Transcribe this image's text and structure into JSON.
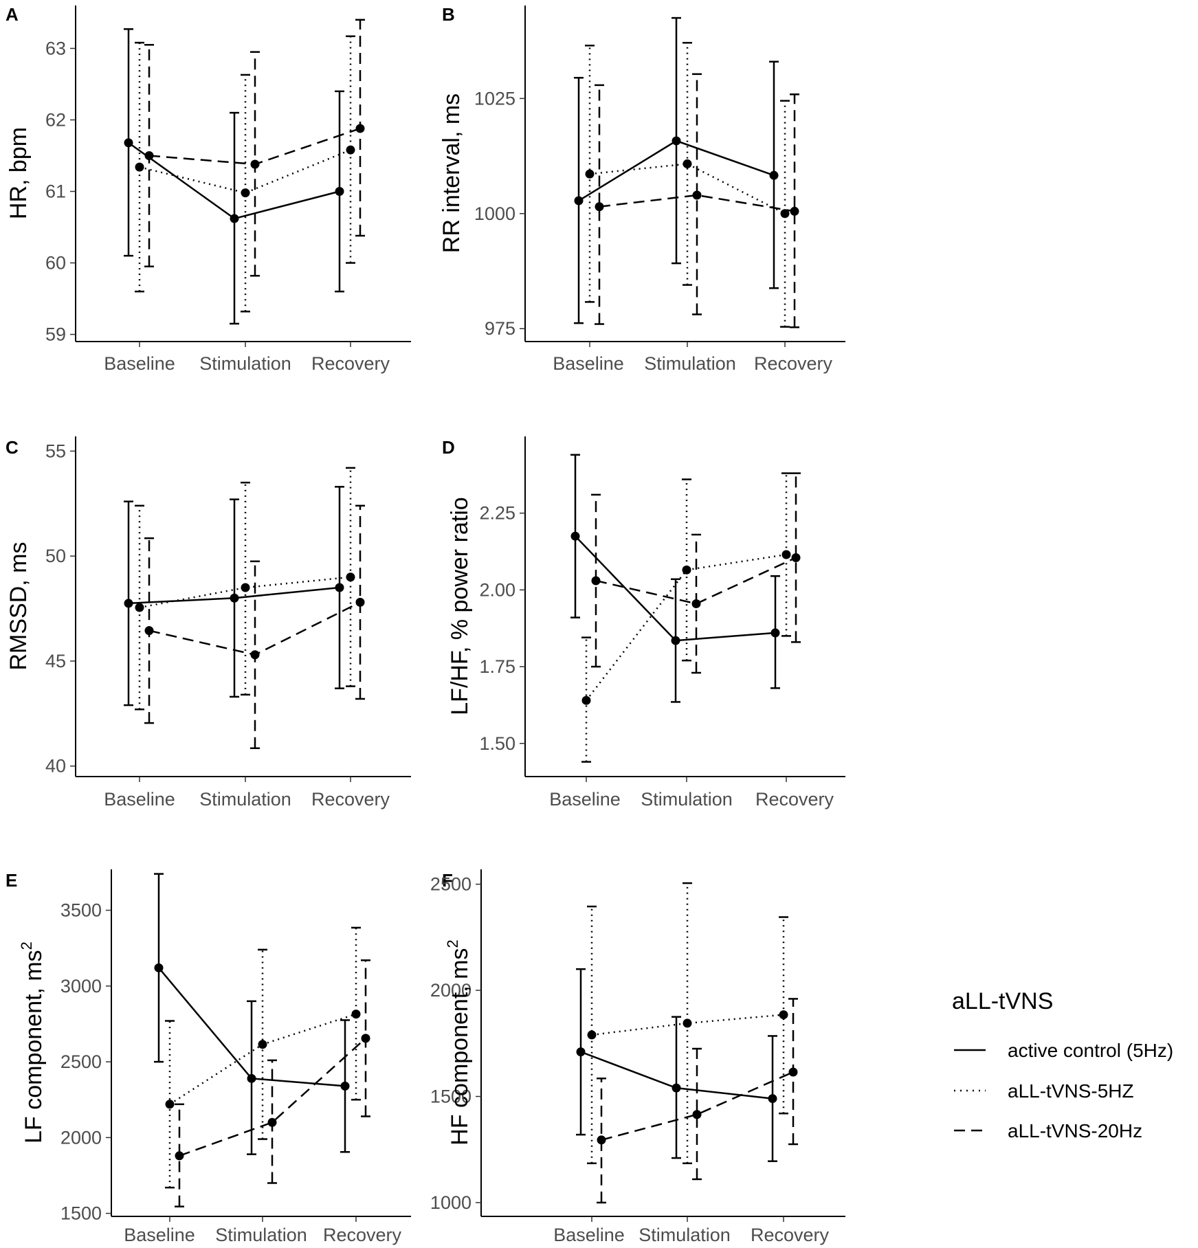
{
  "legend": {
    "title": "aLL-tVNS",
    "entries": [
      {
        "label": "active control (5Hz)",
        "dash": "solid"
      },
      {
        "label": "aLL-tVNS-5HZ",
        "dash": "dotted"
      },
      {
        "label": "aLL-tVNS-20Hz",
        "dash": "dashed"
      }
    ]
  },
  "chart_data": [
    {
      "panel": "A",
      "type": "line",
      "ylabel": "HR, bpm",
      "ylabel_sup": "",
      "categories": [
        "Baseline",
        "Stimulation",
        "Recovery"
      ],
      "ylim": [
        58.9,
        63.6
      ],
      "yticks": [
        59,
        60,
        61,
        62,
        63
      ],
      "ytick_labels": [
        "59",
        "60",
        "61",
        "62",
        "63"
      ],
      "series": [
        {
          "name": "active control (5Hz)",
          "values": [
            61.68,
            60.62,
            61.0
          ],
          "lower": [
            60.1,
            59.15,
            59.6
          ],
          "upper": [
            63.27,
            62.1,
            62.4
          ]
        },
        {
          "name": "aLL-tVNS-5HZ",
          "values": [
            61.34,
            60.98,
            61.58
          ],
          "lower": [
            59.6,
            59.32,
            60.0
          ],
          "upper": [
            63.08,
            62.63,
            63.17
          ]
        },
        {
          "name": "aLL-tVNS-20Hz",
          "values": [
            61.5,
            61.38,
            61.88
          ],
          "lower": [
            59.95,
            59.82,
            60.38
          ],
          "upper": [
            63.05,
            62.95,
            63.4
          ]
        }
      ]
    },
    {
      "panel": "B",
      "type": "line",
      "ylabel": "RR interval, ms",
      "ylabel_sup": "",
      "categories": [
        "Baseline",
        "Stimulation",
        "Recovery"
      ],
      "ylim": [
        972.2,
        1045.2
      ],
      "yticks": [
        975,
        1000,
        1025
      ],
      "ytick_labels": [
        "975",
        "1000",
        "1025"
      ],
      "series": [
        {
          "name": "active control (5Hz)",
          "values": [
            1002.8,
            1015.8,
            1008.3
          ],
          "lower": [
            976.2,
            989.2,
            983.8
          ],
          "upper": [
            1029.5,
            1042.5,
            1033.0
          ]
        },
        {
          "name": "aLL-tVNS-5HZ",
          "values": [
            1008.6,
            1010.8,
            1000.0
          ],
          "lower": [
            980.8,
            984.5,
            975.4
          ],
          "upper": [
            1036.5,
            1037.1,
            1024.5
          ]
        },
        {
          "name": "aLL-tVNS-20Hz",
          "values": [
            1001.5,
            1004.0,
            1000.5
          ],
          "lower": [
            976.0,
            978.1,
            975.3
          ],
          "upper": [
            1027.9,
            1030.3,
            1025.9
          ]
        }
      ]
    },
    {
      "panel": "C",
      "type": "line",
      "ylabel": "RMSSD, ms",
      "ylabel_sup": "",
      "categories": [
        "Baseline",
        "Stimulation",
        "Recovery"
      ],
      "ylim": [
        39.5,
        55.7
      ],
      "yticks": [
        40,
        45,
        50,
        55
      ],
      "ytick_labels": [
        "40",
        "45",
        "50",
        "55"
      ],
      "series": [
        {
          "name": "active control (5Hz)",
          "values": [
            47.75,
            48.0,
            48.5
          ],
          "lower": [
            42.9,
            43.3,
            43.7
          ],
          "upper": [
            52.6,
            52.7,
            53.3
          ]
        },
        {
          "name": "aLL-tVNS-5HZ",
          "values": [
            47.55,
            48.5,
            49.0
          ],
          "lower": [
            42.7,
            43.4,
            43.8
          ],
          "upper": [
            52.4,
            53.5,
            54.2
          ]
        },
        {
          "name": "aLL-tVNS-20Hz",
          "values": [
            46.45,
            45.3,
            47.8
          ],
          "lower": [
            42.05,
            40.85,
            43.2
          ],
          "upper": [
            50.85,
            49.75,
            52.4
          ]
        }
      ]
    },
    {
      "panel": "D",
      "type": "line",
      "ylabel": "LF/HF, % power ratio",
      "ylabel_sup": "",
      "categories": [
        "Baseline",
        "Stimulation",
        "Recovery"
      ],
      "ylim": [
        1.392,
        2.5
      ],
      "yticks": [
        1.5,
        1.75,
        2.0,
        2.25
      ],
      "ytick_labels": [
        "1.50",
        "1.75",
        "2.00",
        "2.25"
      ],
      "series": [
        {
          "name": "active control (5Hz)",
          "values": [
            2.175,
            1.835,
            1.86
          ],
          "lower": [
            1.91,
            1.635,
            1.68
          ],
          "upper": [
            2.44,
            2.035,
            2.045
          ]
        },
        {
          "name": "aLL-tVNS-5HZ",
          "values": [
            1.64,
            2.065,
            2.115
          ],
          "lower": [
            1.44,
            1.77,
            1.85
          ],
          "upper": [
            1.845,
            2.36,
            2.38
          ]
        },
        {
          "name": "aLL-tVNS-20Hz",
          "values": [
            2.03,
            1.955,
            2.105
          ],
          "lower": [
            1.75,
            1.73,
            1.83
          ],
          "upper": [
            2.31,
            2.18,
            2.38
          ]
        }
      ]
    },
    {
      "panel": "E",
      "type": "line",
      "ylabel": "LF component, ms",
      "ylabel_sup": "2",
      "categories": [
        "Baseline",
        "Stimulation",
        "Recovery"
      ],
      "ylim": [
        1480,
        3770
      ],
      "yticks": [
        1500,
        2000,
        2500,
        3000,
        3500
      ],
      "ytick_labels": [
        "1500",
        "2000",
        "2500",
        "3000",
        "3500"
      ],
      "series": [
        {
          "name": "active control (5Hz)",
          "values": [
            3120,
            2390,
            2340
          ],
          "lower": [
            2500,
            1890,
            1905
          ],
          "upper": [
            3740,
            2900,
            2775
          ]
        },
        {
          "name": "aLL-tVNS-5HZ",
          "values": [
            2220,
            2615,
            2815
          ],
          "lower": [
            1670,
            1990,
            2250
          ],
          "upper": [
            2770,
            3240,
            3385
          ]
        },
        {
          "name": "aLL-tVNS-20Hz",
          "values": [
            1880,
            2100,
            2655
          ],
          "lower": [
            1545,
            1700,
            2140
          ],
          "upper": [
            2220,
            2510,
            3170
          ]
        }
      ]
    },
    {
      "panel": "F",
      "type": "line",
      "ylabel": "HF component, ms",
      "ylabel_sup": "2",
      "categories": [
        "Baseline",
        "Stimulation",
        "Recovery"
      ],
      "ylim": [
        935,
        2570
      ],
      "yticks": [
        1000,
        1500,
        2000,
        2500
      ],
      "ytick_labels": [
        "1000",
        "1500",
        "2000",
        "2500"
      ],
      "series": [
        {
          "name": "active control (5Hz)",
          "values": [
            1710,
            1540,
            1490
          ],
          "lower": [
            1320,
            1210,
            1195
          ],
          "upper": [
            2100,
            1875,
            1785
          ]
        },
        {
          "name": "aLL-tVNS-5HZ",
          "values": [
            1790,
            1845,
            1885
          ],
          "lower": [
            1185,
            1185,
            1420
          ],
          "upper": [
            2395,
            2505,
            2345
          ]
        },
        {
          "name": "aLL-tVNS-20Hz",
          "values": [
            1295,
            1415,
            1615
          ],
          "lower": [
            1000,
            1110,
            1275
          ],
          "upper": [
            1585,
            1725,
            1960
          ]
        }
      ]
    }
  ]
}
